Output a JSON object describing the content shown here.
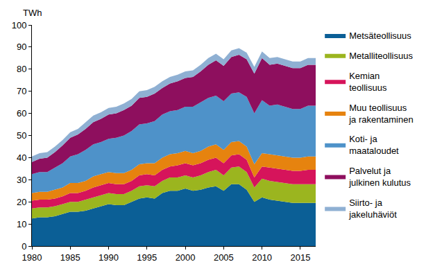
{
  "chart_data": {
    "type": "area",
    "stacked": true,
    "grid": false,
    "legend": "right",
    "y_label": "TWh",
    "x": [
      1980,
      1981,
      1982,
      1983,
      1984,
      1985,
      1986,
      1987,
      1988,
      1989,
      1990,
      1991,
      1992,
      1993,
      1994,
      1995,
      1996,
      1997,
      1998,
      1999,
      2000,
      2001,
      2002,
      2003,
      2004,
      2005,
      2006,
      2007,
      2008,
      2009,
      2010,
      2011,
      2012,
      2013,
      2014,
      2015,
      2016,
      2017
    ],
    "xlim": [
      1980,
      2017
    ],
    "xticks": [
      1980,
      1985,
      1990,
      1995,
      2000,
      2005,
      2010,
      2015
    ],
    "ylim": [
      0,
      100
    ],
    "yticks": [
      0,
      10,
      20,
      30,
      40,
      50,
      60,
      70,
      80,
      90,
      100
    ],
    "series": [
      {
        "name": "Metsäteollisuus",
        "color": "#0b5f96",
        "values": [
          12.5,
          13,
          13,
          13.5,
          14.5,
          15.5,
          15.5,
          16,
          17,
          18,
          19,
          18.5,
          18.5,
          20,
          21.5,
          22,
          21.5,
          24,
          25,
          25,
          26,
          25,
          25.5,
          26.5,
          27,
          25,
          28,
          28,
          25.5,
          20,
          22,
          21,
          20.5,
          20,
          19.5,
          19.5,
          19.5,
          19.5
        ]
      },
      {
        "name": "Metalliteollisuus",
        "color": "#9bb51f",
        "values": [
          4.5,
          4.5,
          4.5,
          4.5,
          4.5,
          4.5,
          4.5,
          5,
          5,
          5,
          5,
          5,
          5,
          5,
          5.5,
          5.5,
          5.5,
          5.5,
          6,
          6,
          6,
          6,
          6.5,
          7,
          7.5,
          7,
          7.5,
          8,
          8,
          6.5,
          8.5,
          8.5,
          8.5,
          8.5,
          8.5,
          8.5,
          8.5,
          8.5
        ]
      },
      {
        "name": "Kemian\nteollisuus",
        "color": "#d6145b",
        "values": [
          3.5,
          3.5,
          3.5,
          3.5,
          3.5,
          4,
          4,
          4,
          4.5,
          4.5,
          4.5,
          4.5,
          4.5,
          4.5,
          5,
          5,
          5,
          5,
          5,
          5.5,
          5.5,
          5.5,
          5.5,
          5.5,
          5.5,
          5.5,
          5.5,
          5.5,
          5.5,
          4.5,
          5.5,
          6,
          6,
          6,
          6,
          6,
          6.5,
          6.5
        ]
      },
      {
        "name": "Muu teollisuus\nja rakentaminen",
        "color": "#e6830f",
        "values": [
          3.5,
          3.5,
          3.5,
          4,
          4,
          4.5,
          4.5,
          4.5,
          5,
          5,
          5,
          5,
          5,
          5,
          5,
          5,
          5.5,
          5.5,
          5.5,
          5.5,
          5.5,
          5.5,
          5.5,
          6,
          6,
          6,
          6,
          6,
          6,
          6,
          6,
          6,
          6,
          6,
          6,
          6,
          6,
          6
        ]
      },
      {
        "name": "Koti- ja\nmaataloudet",
        "color": "#4e92c9",
        "values": [
          8.5,
          9,
          9,
          10,
          11,
          12,
          13,
          14,
          14.5,
          14.5,
          15,
          16,
          17,
          17.5,
          18,
          18,
          19,
          19.5,
          19.5,
          19.5,
          20,
          21,
          22,
          22,
          22,
          22,
          22,
          22,
          22.5,
          23,
          24,
          22,
          23,
          22.5,
          22,
          22,
          23,
          23
        ]
      },
      {
        "name": "Palvelut ja\njulkinen kulutus",
        "color": "#8e0f5e",
        "values": [
          5.5,
          6,
          6.5,
          7,
          8,
          8.5,
          9,
          9.5,
          10,
          10.5,
          11,
          11,
          11.5,
          11.5,
          12,
          12,
          12.5,
          12,
          12.5,
          13,
          13,
          13.5,
          14,
          15,
          16,
          16,
          16.5,
          17,
          17,
          18,
          19,
          18.5,
          18.5,
          18.5,
          18.5,
          18.5,
          18.5,
          18.5
        ]
      },
      {
        "name": "Siirto- ja\njakeluhäviöt",
        "color": "#8fb0d3",
        "values": [
          2.5,
          2.5,
          2.5,
          2.5,
          2.5,
          2.5,
          2.5,
          3,
          3,
          3,
          3,
          3,
          3,
          3,
          3,
          3,
          3,
          3,
          3,
          3,
          3,
          3,
          3,
          3,
          3,
          3,
          3,
          3,
          3,
          3,
          3,
          3,
          3,
          3,
          3,
          3,
          3,
          3
        ]
      }
    ]
  }
}
